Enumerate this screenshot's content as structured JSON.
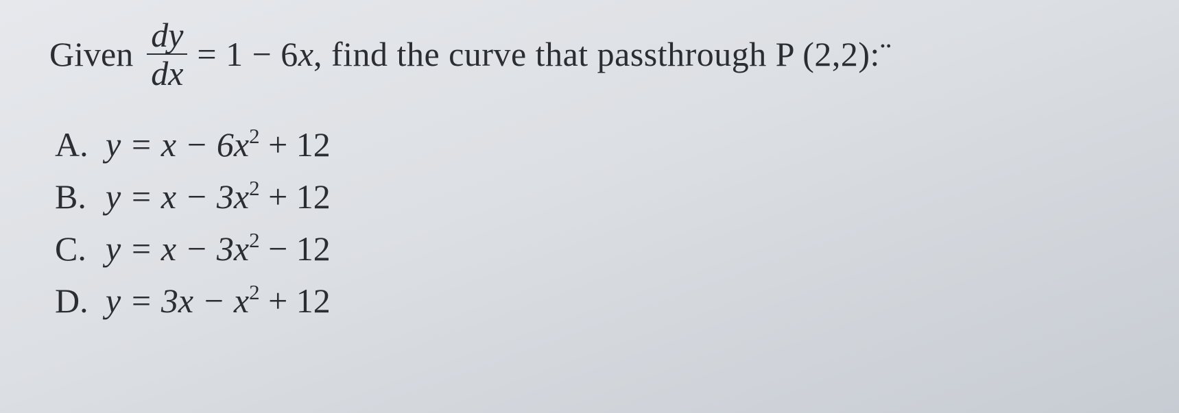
{
  "question": {
    "given_label": "Given",
    "frac_num": "dy",
    "frac_den": "dx",
    "eq_part1": " = 1 − 6",
    "x": "x",
    "eq_part2": ", find the curve that passthrough P (2,2):¨"
  },
  "options": [
    {
      "letter": "A.",
      "pre": "y = x − 6",
      "xvar": "x",
      "exp": "2",
      "post": " + 12"
    },
    {
      "letter": "B.",
      "pre": "y = x − 3",
      "xvar": "x",
      "exp": "2",
      "post": " + 12"
    },
    {
      "letter": "C.",
      "pre": "y = x − 3",
      "xvar": "x",
      "exp": "2",
      "post": " − 12"
    },
    {
      "letter": "D.",
      "pre": "y = 3x − ",
      "xvar": "x",
      "exp": "2",
      "post": " + 12"
    }
  ],
  "colors": {
    "text": "#2a2d32",
    "bg_top": "#e6e8ec",
    "bg_bottom": "#c7ccd3"
  }
}
